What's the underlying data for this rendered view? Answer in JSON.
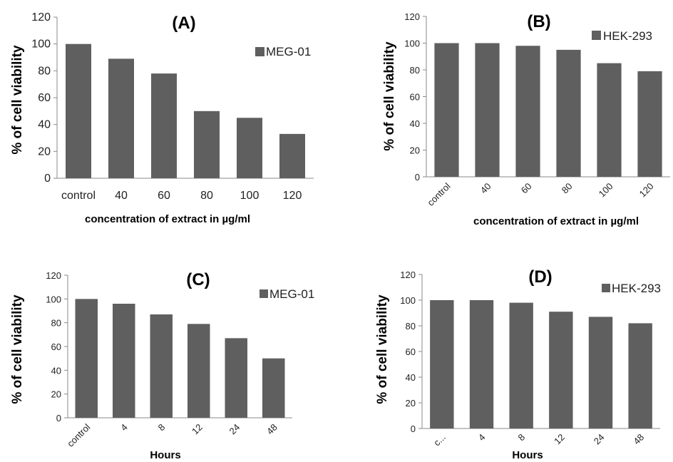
{
  "chart_data": [
    {
      "type": "bar",
      "panel_label": "(A)",
      "categories": [
        "control",
        "40",
        "60",
        "80",
        "100",
        "120"
      ],
      "series": [
        {
          "name": "MEG-01",
          "values": [
            100,
            89,
            78,
            50,
            45,
            33
          ]
        }
      ],
      "xlabel": "concentration of extract in µg/ml",
      "ylabel": "% of cell viability",
      "ylim": [
        0,
        120
      ],
      "yticks": [
        "0",
        "20",
        "40",
        "60",
        "80",
        "100",
        "120"
      ],
      "bar_color": "#5f5f5f",
      "legend_position": "top-right"
    },
    {
      "type": "bar",
      "panel_label": "(B)",
      "categories": [
        "control",
        "40",
        "60",
        "80",
        "100",
        "120"
      ],
      "series": [
        {
          "name": "HEK-293",
          "values": [
            100,
            100,
            98,
            95,
            85,
            79
          ]
        }
      ],
      "xlabel": "concentration of extract in µg/ml",
      "ylabel": "% of cell viability",
      "ylim": [
        0,
        120
      ],
      "yticks": [
        "0",
        "20",
        "40",
        "60",
        "80",
        "100",
        "120"
      ],
      "bar_color": "#5f5f5f",
      "legend_position": "top-right"
    },
    {
      "type": "bar",
      "panel_label": "(C)",
      "categories": [
        "control",
        "4",
        "8",
        "12",
        "24",
        "48"
      ],
      "series": [
        {
          "name": "MEG-01",
          "values": [
            100,
            96,
            87,
            79,
            67,
            50
          ]
        }
      ],
      "xlabel": "Hours",
      "ylabel": "% of cell viability",
      "ylim": [
        0,
        120
      ],
      "yticks": [
        "0",
        "20",
        "40",
        "60",
        "80",
        "100",
        "120"
      ],
      "bar_color": "#5f5f5f",
      "legend_position": "top-right"
    },
    {
      "type": "bar",
      "panel_label": "(D)",
      "categories": [
        "c...",
        "4",
        "8",
        "12",
        "24",
        "48"
      ],
      "series": [
        {
          "name": "HEK-293",
          "values": [
            100,
            100,
            98,
            91,
            87,
            82
          ]
        }
      ],
      "xlabel": "Hours",
      "ylabel": "% of cell viability",
      "ylim": [
        0,
        120
      ],
      "yticks": [
        "0",
        "20",
        "40",
        "60",
        "80",
        "100",
        "120"
      ],
      "bar_color": "#5f5f5f",
      "legend_position": "top-right"
    }
  ]
}
